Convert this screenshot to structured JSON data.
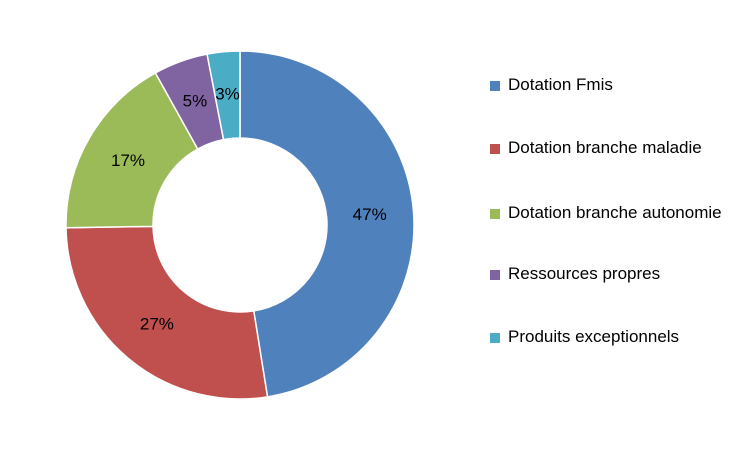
{
  "chart_data": {
    "type": "pie",
    "donut": true,
    "title": "",
    "categories": [
      "Dotation Fmis",
      "Dotation branche maladie",
      "Dotation branche autonomie",
      "Ressources propres",
      "Produits exceptionnels"
    ],
    "values": [
      47,
      27,
      17,
      5,
      3
    ],
    "value_labels": [
      "47%",
      "27%",
      "17%",
      "5%",
      "3%"
    ],
    "colors": [
      "#4F81BD",
      "#C0504D",
      "#9BBB59",
      "#8064A2",
      "#4BACC6"
    ],
    "legend_position": "right"
  }
}
